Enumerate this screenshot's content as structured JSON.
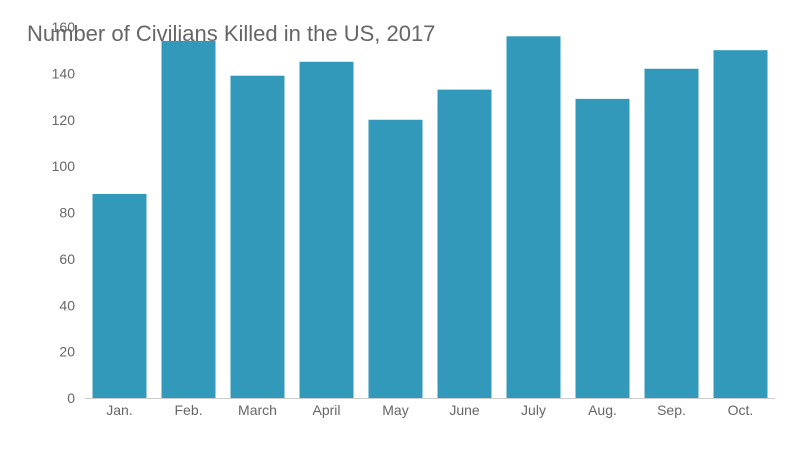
{
  "chart_data": {
    "type": "bar",
    "title": "Number of Civilians Killed in the US, 2017",
    "xlabel": "",
    "ylabel": "",
    "categories": [
      "Jan.",
      "Feb.",
      "March",
      "April",
      "May",
      "June",
      "July",
      "Aug.",
      "Sep.",
      "Oct."
    ],
    "values": [
      88,
      154,
      139,
      145,
      120,
      133,
      156,
      129,
      142,
      150
    ],
    "ylim": [
      0,
      160
    ],
    "yticks": [
      0,
      20,
      40,
      60,
      80,
      100,
      120,
      140,
      160
    ],
    "grid": false,
    "legend": "none",
    "bar_color": "#3399bb",
    "axis_color": "#cccccc"
  }
}
